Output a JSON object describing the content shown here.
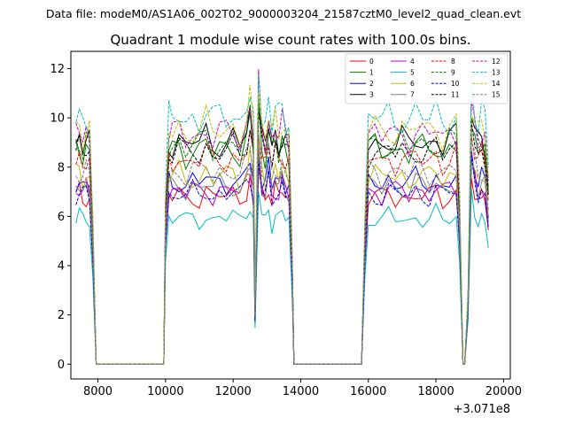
{
  "figure": {
    "suptitle": "Data file: modeM0/AS1A06_002T02_9000003204_21587cztM0_level2_quad_clean.evt"
  },
  "chart_data": {
    "type": "line",
    "title": "Quadrant 1 module wise count rates with 100.0s bins.",
    "xlabel": "",
    "ylabel": "",
    "x_offset_label": "+3.071e8",
    "xlim": [
      7200,
      20200
    ],
    "ylim": [
      -0.6,
      12.7
    ],
    "xticks": [
      8000,
      10000,
      12000,
      14000,
      16000,
      18000,
      20000
    ],
    "xtick_labels": [
      "8000",
      "10000",
      "12000",
      "14000",
      "16000",
      "18000",
      "20000"
    ],
    "yticks": [
      0,
      2,
      4,
      6,
      8,
      10,
      12
    ],
    "ytick_labels": [
      "0",
      "2",
      "4",
      "6",
      "8",
      "10",
      "12"
    ],
    "legend_position": "top-right",
    "legend_columns": 4,
    "time_profile": {
      "x": [
        7350,
        7450,
        7550,
        7650,
        7750,
        7850,
        7950,
        8000,
        8500,
        9000,
        9500,
        9950,
        10000,
        10100,
        10200,
        10400,
        10600,
        10800,
        11000,
        11200,
        11400,
        11600,
        11800,
        12000,
        12200,
        12400,
        12500,
        12600,
        12650,
        12750,
        12850,
        12950,
        13050,
        13150,
        13250,
        13350,
        13450,
        13550,
        13650,
        13750,
        13800,
        14500,
        15000,
        15500,
        15700,
        15800,
        15900,
        16000,
        16200,
        16400,
        16600,
        16800,
        17000,
        17200,
        17400,
        17600,
        17800,
        18000,
        18200,
        18400,
        18600,
        18700,
        18800,
        18850,
        18950,
        19050,
        19150,
        19250,
        19350,
        19450,
        19550
      ],
      "shape": [
        1.0,
        1.02,
        0.98,
        1.01,
        0.99,
        0.6,
        0.0,
        0.0,
        0.0,
        0.0,
        0.0,
        0.0,
        0.7,
        1.0,
        0.99,
        1.02,
        0.98,
        1.01,
        0.99,
        1.03,
        0.98,
        1.01,
        1.0,
        1.02,
        0.98,
        1.05,
        1.12,
        0.99,
        0.25,
        1.2,
        1.02,
        0.98,
        1.08,
        0.97,
        1.03,
        0.99,
        1.05,
        1.0,
        0.98,
        0.45,
        0.0,
        0.0,
        0.0,
        0.0,
        0.0,
        0.0,
        0.6,
        1.0,
        1.01,
        0.98,
        1.02,
        0.99,
        1.01,
        0.98,
        1.02,
        1.0,
        0.99,
        1.03,
        0.98,
        1.01,
        1.02,
        0.7,
        0.0,
        0.0,
        0.3,
        1.15,
        1.05,
        0.98,
        1.02,
        0.99,
        0.8
      ]
    },
    "series": [
      {
        "name": "0",
        "color": "#ff0000",
        "dash": "solid",
        "level": 6.8
      },
      {
        "name": "1",
        "color": "#008000",
        "dash": "solid",
        "level": 8.7
      },
      {
        "name": "2",
        "color": "#0000ff",
        "dash": "solid",
        "level": 7.4
      },
      {
        "name": "3",
        "color": "#000000",
        "dash": "solid",
        "level": 9.0
      },
      {
        "name": "4",
        "color": "#bf00bf",
        "dash": "solid",
        "level": 7.0
      },
      {
        "name": "5",
        "color": "#00bfbf",
        "dash": "solid",
        "level": 5.9
      },
      {
        "name": "6",
        "color": "#bfbf00",
        "dash": "solid",
        "level": 7.6
      },
      {
        "name": "7",
        "color": "#808080",
        "dash": "solid",
        "level": 7.2
      },
      {
        "name": "8",
        "color": "#ff0000",
        "dash": "dashed",
        "level": 8.3
      },
      {
        "name": "9",
        "color": "#008000",
        "dash": "dashed",
        "level": 8.9
      },
      {
        "name": "10",
        "color": "#0000ff",
        "dash": "dashed",
        "level": 6.9
      },
      {
        "name": "11",
        "color": "#000000",
        "dash": "dashed",
        "level": 8.6
      },
      {
        "name": "12",
        "color": "#bf00bf",
        "dash": "dashed",
        "level": 9.3
      },
      {
        "name": "13",
        "color": "#00bfbf",
        "dash": "dashed",
        "level": 10.0
      },
      {
        "name": "14",
        "color": "#bfbf00",
        "dash": "dashed",
        "level": 9.5
      },
      {
        "name": "15",
        "color": "#808080",
        "dash": "dashed",
        "level": 7.8
      }
    ]
  }
}
